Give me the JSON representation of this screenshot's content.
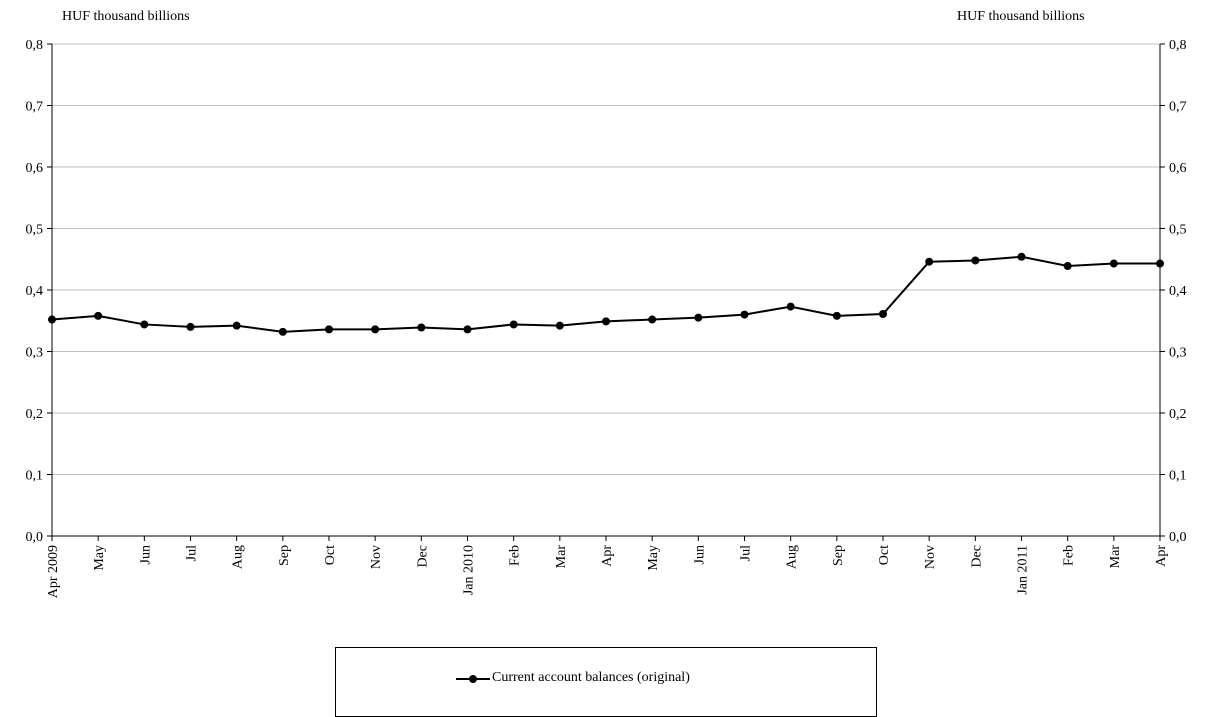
{
  "chart_data": {
    "type": "line",
    "y_unit_left": "HUF thousand billions",
    "y_unit_right": "HUF thousand billions",
    "ylim": [
      0.0,
      0.8
    ],
    "yticks": [
      "0,0",
      "0,1",
      "0,2",
      "0,3",
      "0,4",
      "0,5",
      "0,6",
      "0,7",
      "0,8"
    ],
    "grid": true,
    "legend_position": "bottom",
    "categories": [
      "Apr 2009",
      "May",
      "Jun",
      "Jul",
      "Aug",
      "Sep",
      "Oct",
      "Nov",
      "Dec",
      "Jan 2010",
      "Feb",
      "Mar",
      "Apr",
      "May",
      "Jun",
      "Jul",
      "Aug",
      "Sep",
      "Oct",
      "Nov",
      "Dec",
      "Jan 2011",
      "Feb",
      "Mar",
      "Apr"
    ],
    "series": [
      {
        "name": "Current account balances (original)",
        "color": "#000000",
        "values": [
          0.352,
          0.358,
          0.344,
          0.34,
          0.342,
          0.332,
          0.336,
          0.336,
          0.339,
          0.336,
          0.344,
          0.342,
          0.349,
          0.352,
          0.355,
          0.36,
          0.373,
          0.358,
          0.361,
          0.446,
          0.448,
          0.454,
          0.439,
          0.443,
          0.443
        ]
      }
    ]
  }
}
